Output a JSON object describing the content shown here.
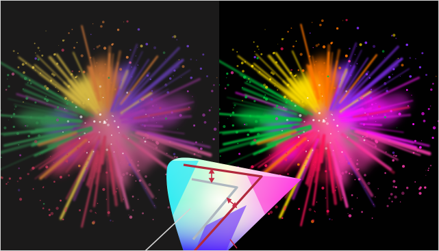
{
  "scene": {
    "left_panel": {
      "variant": "washed-out",
      "background_color": "#1b1a1a",
      "saturation": 0.72,
      "brightness": 0.9
    },
    "right_panel": {
      "variant": "vivid",
      "background_color": "#010101",
      "saturation": 1.35,
      "brightness": 1.05
    },
    "burst_colors": [
      "#1fa84a",
      "#ffd21a",
      "#ff7a1a",
      "#ff2a5c",
      "#d12ad8",
      "#7a3bff",
      "#ff4fa0",
      "#ffffff"
    ],
    "gamut_diagram": {
      "outer_stroke_color": "#b0283c",
      "inner_stroke_color": "#aeb7bf",
      "arrow_color": "#c62a45",
      "pointer_line_color": "#cfcfcf"
    }
  }
}
